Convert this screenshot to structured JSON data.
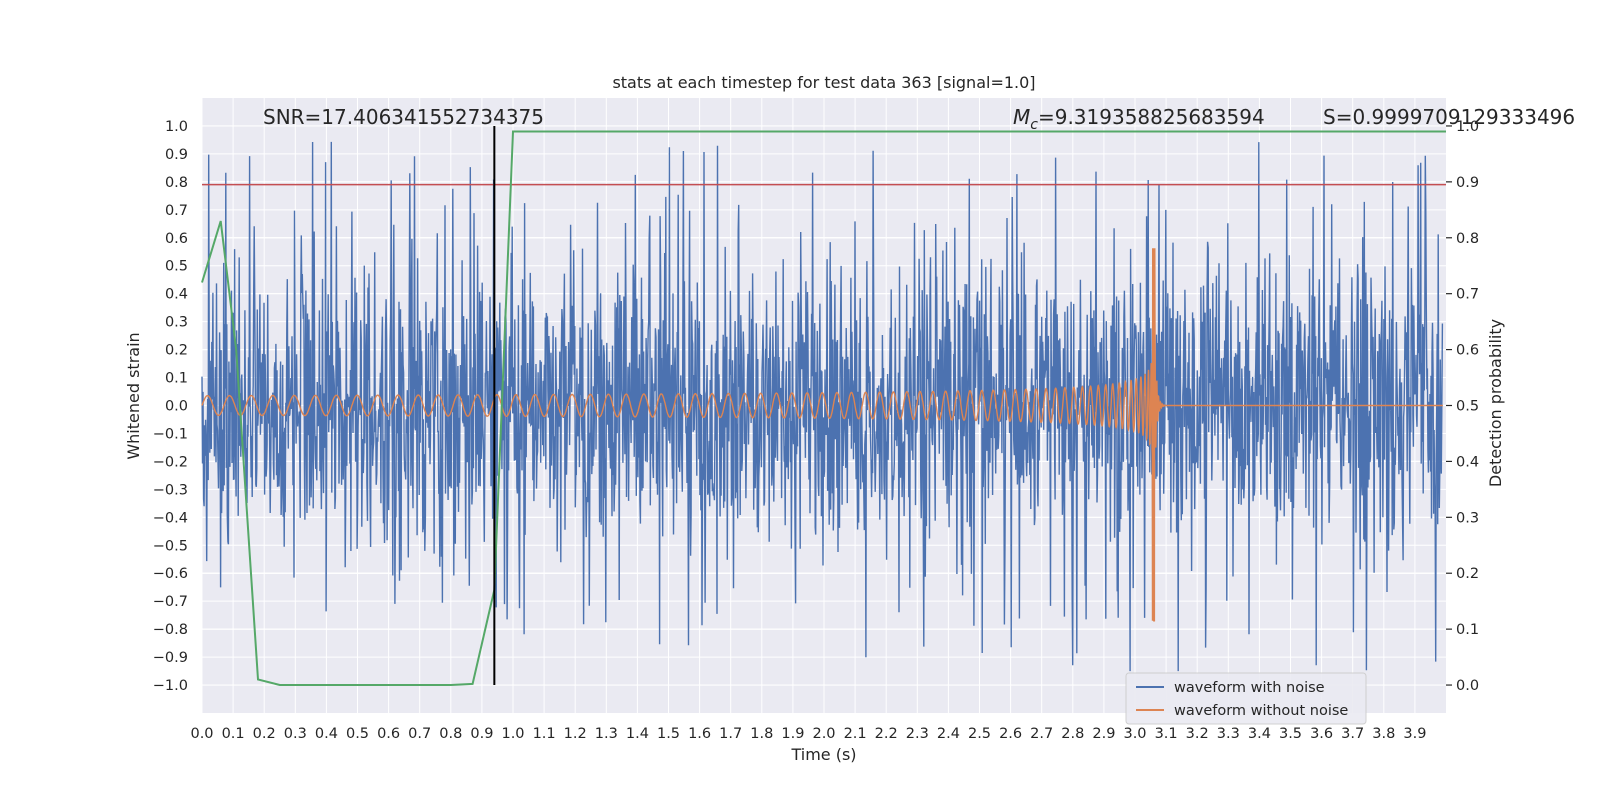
{
  "chart_data": {
    "type": "line",
    "title": "stats at each timestep for test data 363 [signal=1.0]",
    "xlabel": "Time (s)",
    "ylabel_left": "Whitened strain",
    "ylabel_right": "Detection probability",
    "xlim": [
      0.0,
      4.0
    ],
    "ylim_left": [
      -1.1,
      1.1
    ],
    "ylim_right": [
      -0.05,
      1.05
    ],
    "x_ticks": [
      "0.0",
      "0.1",
      "0.2",
      "0.3",
      "0.4",
      "0.5",
      "0.6",
      "0.7",
      "0.8",
      "0.9",
      "1.0",
      "1.1",
      "1.2",
      "1.3",
      "1.4",
      "1.5",
      "1.6",
      "1.7",
      "1.8",
      "1.9",
      "2.0",
      "2.1",
      "2.2",
      "2.3",
      "2.4",
      "2.5",
      "2.6",
      "2.7",
      "2.8",
      "2.9",
      "3.0",
      "3.1",
      "3.2",
      "3.3",
      "3.4",
      "3.5",
      "3.6",
      "3.7",
      "3.8",
      "3.9"
    ],
    "y_ticks_left": [
      "1.0",
      "0.9",
      "0.8",
      "0.7",
      "0.6",
      "0.5",
      "0.4",
      "0.3",
      "0.2",
      "0.1",
      "0.0",
      "−0.1",
      "−0.2",
      "−0.3",
      "−0.4",
      "−0.5",
      "−0.6",
      "−0.7",
      "−0.8",
      "−0.9",
      "−1.0"
    ],
    "y_ticks_right": [
      "1.0",
      "0.9",
      "0.8",
      "0.7",
      "0.6",
      "0.5",
      "0.4",
      "0.3",
      "0.2",
      "0.1",
      "0.0"
    ],
    "grid": true,
    "legend_position": "lower-right",
    "series": [
      {
        "name": "waveform with noise",
        "color": "#4c72b0",
        "axis": "left",
        "kind": "noise",
        "amplitude_range": [
          -0.95,
          0.98
        ]
      },
      {
        "name": "waveform without noise",
        "color": "#dd8452",
        "axis": "left",
        "kind": "chirp",
        "merger_time": 3.06,
        "peak_amplitude": 0.56,
        "min_amplitude": -0.77
      },
      {
        "name": "",
        "color": "#55a868",
        "axis": "right",
        "kind": "probability",
        "x": [
          0.0,
          0.06,
          0.11,
          0.18,
          0.25,
          0.5,
          0.8,
          0.87,
          0.94,
          1.0,
          1.1,
          4.0
        ],
        "y": [
          0.72,
          0.83,
          0.6,
          0.01,
          0.0,
          0.0,
          0.0,
          0.002,
          0.17,
          0.99,
          0.99,
          0.99
        ]
      }
    ],
    "threshold_line": {
      "y_left": 0.79,
      "color": "#c44e52"
    },
    "vertical_marker": {
      "x": 0.94,
      "color": "#000000"
    },
    "annotations": {
      "snr": "SNR=17.406341552734375",
      "mc_symbol": "M",
      "mc_sub": "c",
      "mc_value": "=9.319358825683594",
      "s": "S=0.9999709129333496"
    },
    "legend": [
      {
        "label": "waveform with noise",
        "color": "#4c72b0"
      },
      {
        "label": "waveform without noise",
        "color": "#dd8452"
      }
    ]
  }
}
